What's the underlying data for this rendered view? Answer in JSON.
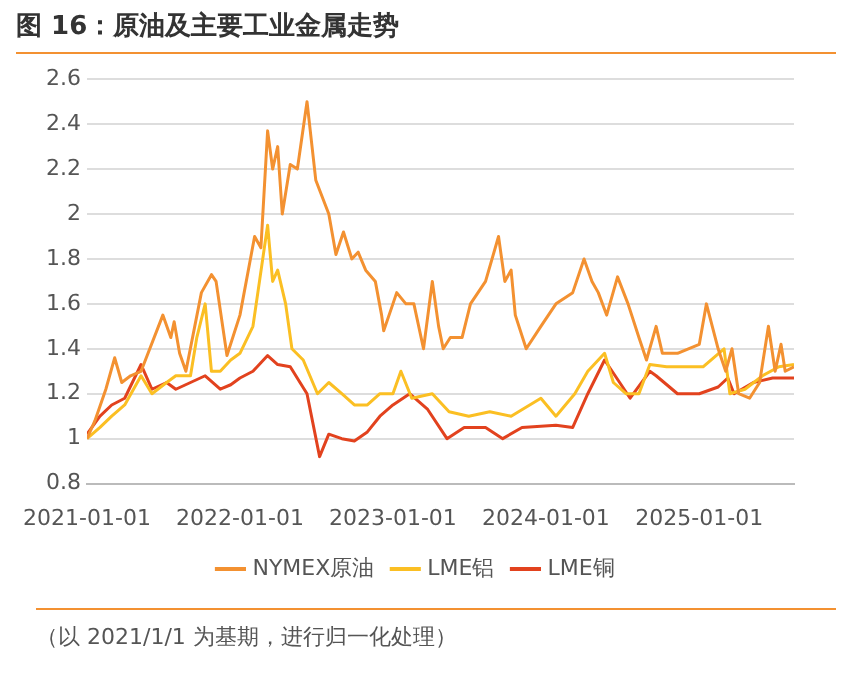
{
  "chart_data": {
    "type": "line",
    "title": "图 16：原油及主要工业金属走势",
    "annotations": [
      "（以 2021/1/1 为基期，进行归一化处理）"
    ],
    "xlim": [
      "2021-01-01",
      "2025-08-15"
    ],
    "xticks": [
      "2021-01-01",
      "2022-01-01",
      "2023-01-01",
      "2024-01-01",
      "2025-01-01"
    ],
    "ylim": [
      0.8,
      2.6
    ],
    "yticks": [
      0.8,
      1,
      1.2,
      1.4,
      1.6,
      1.8,
      2,
      2.2,
      2.4,
      2.6
    ],
    "grid": "y",
    "legend": "bottom",
    "marker": "none",
    "line_style": "solid",
    "series": [
      {
        "name": "NYMEX原油",
        "color": "#f39131",
        "x": [
          "2021-01-01",
          "2021-01-20",
          "2021-02-15",
          "2021-03-08",
          "2021-03-25",
          "2021-04-15",
          "2021-05-10",
          "2021-07-01",
          "2021-07-20",
          "2021-07-28",
          "2021-08-10",
          "2021-08-25",
          "2021-10-01",
          "2021-10-25",
          "2021-11-05",
          "2021-12-01",
          "2022-01-01",
          "2022-02-05",
          "2022-02-20",
          "2022-03-08",
          "2022-03-20",
          "2022-04-01",
          "2022-04-12",
          "2022-05-01",
          "2022-05-18",
          "2022-06-10",
          "2022-07-01",
          "2022-08-01",
          "2022-08-18",
          "2022-09-05",
          "2022-09-25",
          "2022-10-10",
          "2022-10-28",
          "2022-11-20",
          "2022-12-05",
          "2022-12-10",
          "2023-01-01",
          "2023-01-10",
          "2023-02-01",
          "2023-02-20",
          "2023-03-15",
          "2023-04-05",
          "2023-04-20",
          "2023-05-01",
          "2023-05-18",
          "2023-06-15",
          "2023-07-05",
          "2023-08-10",
          "2023-09-10",
          "2023-09-25",
          "2023-10-10",
          "2023-10-20",
          "2023-11-15",
          "2023-12-20",
          "2024-01-25",
          "2024-03-05",
          "2024-04-01",
          "2024-04-20",
          "2024-05-05",
          "2024-05-25",
          "2024-06-20",
          "2024-07-15",
          "2024-08-10",
          "2024-08-28",
          "2024-09-20",
          "2024-10-05",
          "2024-11-10",
          "2025-01-01",
          "2025-01-18",
          "2025-02-15",
          "2025-03-05",
          "2025-03-20",
          "2025-04-05",
          "2025-05-01",
          "2025-05-25",
          "2025-06-15",
          "2025-07-01",
          "2025-07-15",
          "2025-07-25",
          "2025-08-15"
        ],
        "values": [
          1.0,
          1.08,
          1.22,
          1.36,
          1.25,
          1.28,
          1.3,
          1.55,
          1.45,
          1.52,
          1.38,
          1.3,
          1.65,
          1.73,
          1.7,
          1.37,
          1.55,
          1.9,
          1.85,
          2.37,
          2.2,
          2.3,
          2.0,
          2.22,
          2.2,
          2.5,
          2.15,
          2.0,
          1.82,
          1.92,
          1.8,
          1.83,
          1.75,
          1.7,
          1.55,
          1.48,
          1.6,
          1.65,
          1.6,
          1.6,
          1.4,
          1.7,
          1.5,
          1.4,
          1.45,
          1.45,
          1.6,
          1.7,
          1.9,
          1.7,
          1.75,
          1.55,
          1.4,
          1.5,
          1.6,
          1.65,
          1.8,
          1.7,
          1.65,
          1.55,
          1.72,
          1.6,
          1.45,
          1.35,
          1.5,
          1.38,
          1.38,
          1.42,
          1.6,
          1.4,
          1.3,
          1.4,
          1.2,
          1.18,
          1.25,
          1.5,
          1.3,
          1.42,
          1.3,
          1.32
        ]
      },
      {
        "name": "LME铝",
        "color": "#fbbf23",
        "x": [
          "2021-01-01",
          "2021-02-01",
          "2021-03-01",
          "2021-04-01",
          "2021-05-10",
          "2021-06-05",
          "2021-07-10",
          "2021-08-01",
          "2021-09-05",
          "2021-09-20",
          "2021-10-10",
          "2021-10-25",
          "2021-11-15",
          "2021-12-10",
          "2022-01-01",
          "2022-02-01",
          "2022-03-08",
          "2022-03-20",
          "2022-04-01",
          "2022-04-20",
          "2022-05-05",
          "2022-06-01",
          "2022-07-05",
          "2022-08-01",
          "2022-09-01",
          "2022-10-01",
          "2022-11-01",
          "2022-12-01",
          "2023-01-01",
          "2023-01-20",
          "2023-02-15",
          "2023-04-05",
          "2023-05-15",
          "2023-07-01",
          "2023-08-20",
          "2023-10-10",
          "2023-12-20",
          "2024-01-25",
          "2024-03-10",
          "2024-04-10",
          "2024-05-20",
          "2024-06-10",
          "2024-07-10",
          "2024-08-10",
          "2024-09-05",
          "2024-10-15",
          "2024-12-05",
          "2025-01-10",
          "2025-03-01",
          "2025-03-15",
          "2025-04-20",
          "2025-06-01",
          "2025-07-10",
          "2025-08-15"
        ],
        "values": [
          1.0,
          1.05,
          1.1,
          1.15,
          1.28,
          1.2,
          1.25,
          1.28,
          1.28,
          1.45,
          1.6,
          1.3,
          1.3,
          1.35,
          1.38,
          1.5,
          1.95,
          1.7,
          1.75,
          1.6,
          1.4,
          1.35,
          1.2,
          1.25,
          1.2,
          1.15,
          1.15,
          1.2,
          1.2,
          1.3,
          1.18,
          1.2,
          1.12,
          1.1,
          1.12,
          1.1,
          1.18,
          1.1,
          1.2,
          1.3,
          1.38,
          1.25,
          1.2,
          1.2,
          1.33,
          1.32,
          1.32,
          1.32,
          1.4,
          1.2,
          1.22,
          1.28,
          1.32,
          1.33
        ]
      },
      {
        "name": "LME铜",
        "color": "#e2421e",
        "x": [
          "2021-01-01",
          "2021-02-01",
          "2021-03-01",
          "2021-04-01",
          "2021-05-10",
          "2021-06-05",
          "2021-07-10",
          "2021-08-01",
          "2021-09-05",
          "2021-10-10",
          "2021-11-15",
          "2021-12-10",
          "2022-01-01",
          "2022-02-01",
          "2022-03-08",
          "2022-04-01",
          "2022-05-01",
          "2022-06-10",
          "2022-07-10",
          "2022-08-01",
          "2022-09-01",
          "2022-10-01",
          "2022-11-01",
          "2022-12-01",
          "2023-01-01",
          "2023-02-10",
          "2023-03-25",
          "2023-05-10",
          "2023-06-20",
          "2023-08-10",
          "2023-09-20",
          "2023-11-05",
          "2024-01-25",
          "2024-03-05",
          "2024-04-10",
          "2024-05-20",
          "2024-06-25",
          "2024-07-20",
          "2024-09-05",
          "2024-09-20",
          "2024-11-10",
          "2025-01-01",
          "2025-02-15",
          "2025-03-10",
          "2025-03-25",
          "2025-05-10",
          "2025-06-25",
          "2025-08-15"
        ],
        "values": [
          1.02,
          1.1,
          1.15,
          1.18,
          1.33,
          1.22,
          1.25,
          1.22,
          1.25,
          1.28,
          1.22,
          1.24,
          1.27,
          1.3,
          1.37,
          1.33,
          1.32,
          1.2,
          0.92,
          1.02,
          1.0,
          0.99,
          1.03,
          1.1,
          1.15,
          1.2,
          1.13,
          1.0,
          1.05,
          1.05,
          1.0,
          1.05,
          1.06,
          1.05,
          1.2,
          1.35,
          1.25,
          1.18,
          1.3,
          1.28,
          1.2,
          1.2,
          1.23,
          1.27,
          1.2,
          1.25,
          1.27,
          1.27
        ]
      }
    ]
  }
}
